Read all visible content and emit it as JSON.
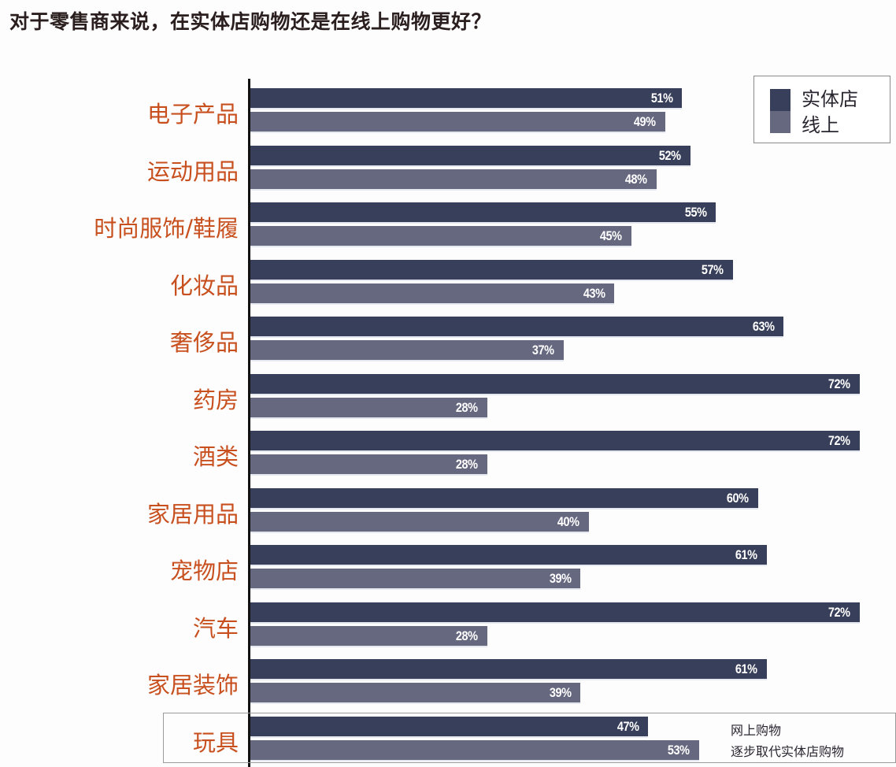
{
  "title": "对于零售商来说，在实体店购物还是在线上购物更好？",
  "colors": {
    "store": "#383f5a",
    "online": "#666880",
    "category_label": "#c8501e",
    "title": "#2a1e1e"
  },
  "legend": {
    "items": [
      {
        "label": "实体店",
        "color": "#383f5a"
      },
      {
        "label": "线上",
        "color": "#666880"
      }
    ]
  },
  "rows": [
    {
      "category": "电子产品",
      "store": "51%",
      "online": "49%"
    },
    {
      "category": "运动用品",
      "store": "52%",
      "online": "48%"
    },
    {
      "category": "时尚服饰/鞋履",
      "store": "55%",
      "online": "45%"
    },
    {
      "category": "化妆品",
      "store": "57%",
      "online": "43%"
    },
    {
      "category": "奢侈品",
      "store": "63%",
      "online": "37%"
    },
    {
      "category": "药房",
      "store": "72%",
      "online": "28%"
    },
    {
      "category": "酒类",
      "store": "72%",
      "online": "28%"
    },
    {
      "category": "家居用品",
      "store": "60%",
      "online": "40%"
    },
    {
      "category": "宠物店",
      "store": "61%",
      "online": "39%"
    },
    {
      "category": "汽车",
      "store": "72%",
      "online": "28%"
    },
    {
      "category": "家居装饰",
      "store": "61%",
      "online": "39%"
    },
    {
      "category": "玩具",
      "store": "47%",
      "online": "53%"
    }
  ],
  "annotation": {
    "line1": "网上购物",
    "line2": "逐步取代实体店购物"
  },
  "chart_data": {
    "type": "bar",
    "orientation": "horizontal",
    "title": "对于零售商来说，在实体店购物还是在线上购物更好？",
    "categories": [
      "电子产品",
      "运动用品",
      "时尚服饰/鞋履",
      "化妆品",
      "奢侈品",
      "药房",
      "酒类",
      "家居用品",
      "宠物店",
      "汽车",
      "家居装饰",
      "玩具"
    ],
    "series": [
      {
        "name": "实体店",
        "color": "#383f5a",
        "values": [
          51,
          52,
          55,
          57,
          63,
          72,
          72,
          60,
          61,
          72,
          61,
          47
        ]
      },
      {
        "name": "线上",
        "color": "#666880",
        "values": [
          49,
          48,
          45,
          43,
          37,
          28,
          28,
          40,
          39,
          28,
          39,
          53
        ]
      }
    ],
    "value_format": "percent",
    "data_labels": true,
    "xlabel": "",
    "ylabel": "",
    "xlim": [
      0,
      72
    ],
    "grid": false,
    "legend_position": "top-right",
    "annotations": [
      {
        "target": "玩具",
        "text": "网上购物 逐步取代实体店购物",
        "highlighted": true
      }
    ]
  }
}
